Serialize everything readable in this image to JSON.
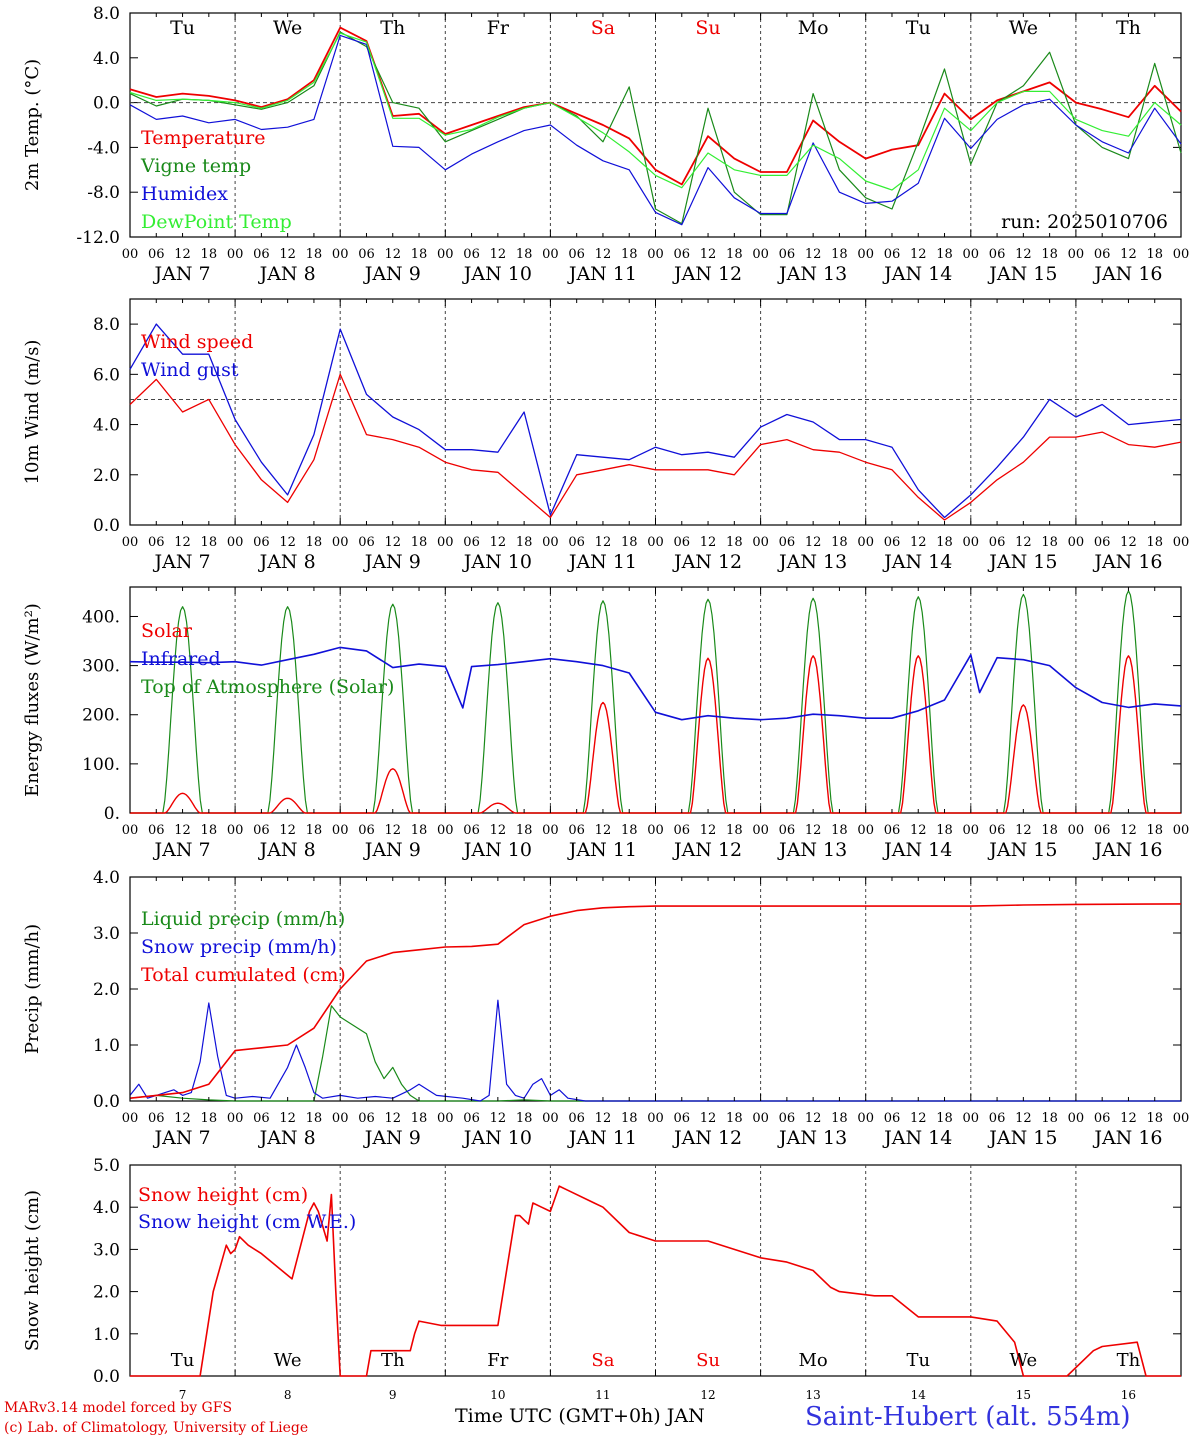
{
  "footer": {
    "model_line": "MARv3.14 model forced by GFS",
    "credit_line": "(c) Lab. of Climatology, University of Liege",
    "time_axis_label": "Time UTC (GMT+0h) JAN",
    "station": "Saint-Hubert (alt. 554m)"
  },
  "colors": {
    "red": "#ee0000",
    "dark_green": "#1a8a1a",
    "blue": "#1010d8",
    "light_green": "#33ee33",
    "grey": "#555555"
  },
  "days": {
    "weekdays": [
      "Tu",
      "We",
      "Th",
      "Fr",
      "Sa",
      "Su",
      "Mo",
      "Tu",
      "We",
      "Th"
    ],
    "weekend_flags": [
      false,
      false,
      false,
      false,
      true,
      true,
      false,
      false,
      false,
      false
    ],
    "date_labels": [
      "JAN  7",
      "JAN  8",
      "JAN  9",
      "JAN 10",
      "JAN 11",
      "JAN 12",
      "JAN 13",
      "JAN 14",
      "JAN 15",
      "JAN 16"
    ],
    "day_numbers": [
      "7",
      "8",
      "9",
      "10",
      "11",
      "12",
      "13",
      "14",
      "15",
      "16"
    ],
    "hour_ticks": [
      "00",
      "06",
      "12",
      "18"
    ],
    "final_tick": "00"
  },
  "chart_data": [
    {
      "type": "line",
      "ylabel": "2m Temp. (°C)",
      "ylim": [
        -12,
        8
      ],
      "y_ticks": [
        "8.0",
        "4.0",
        "0.0",
        "-4.0",
        "-8.0",
        "-12.0"
      ],
      "reference_line": 0,
      "annotation": "run: 2025010706",
      "x_hours": [
        0,
        6,
        12,
        18,
        24,
        30,
        36,
        42,
        48,
        54,
        60,
        66,
        72,
        78,
        84,
        90,
        96,
        102,
        108,
        114,
        120,
        126,
        132,
        138,
        144,
        150,
        156,
        162,
        168,
        174,
        180,
        186,
        192,
        198,
        204,
        210,
        216,
        222,
        228,
        234,
        240
      ],
      "series": [
        {
          "name": "Temperature",
          "color": "red",
          "values": [
            1.2,
            0.5,
            0.8,
            0.6,
            0.2,
            -0.4,
            0.3,
            2.0,
            6.7,
            5.5,
            -1.2,
            -1.0,
            -2.8,
            -2.0,
            -1.2,
            -0.4,
            0.0,
            -1.0,
            -2.0,
            -3.2,
            -6.0,
            -7.3,
            -3.0,
            -5.0,
            -6.2,
            -6.2,
            -1.6,
            -3.5,
            -5.0,
            -4.2,
            -3.8,
            0.8,
            -1.5,
            0.2,
            1.0,
            1.8,
            0.0,
            -0.6,
            -1.3,
            1.5,
            -0.8
          ]
        },
        {
          "name": "Vigne temp",
          "color": "dark_green",
          "values": [
            0.8,
            -0.3,
            0.3,
            0.2,
            -0.2,
            -0.6,
            0.0,
            1.5,
            6.3,
            5.0,
            0.0,
            -0.5,
            -3.5,
            -2.5,
            -1.5,
            -0.5,
            0.0,
            -1.2,
            -3.5,
            1.4,
            -9.5,
            -10.8,
            -0.5,
            -8.0,
            -10.0,
            -10.0,
            0.8,
            -6.0,
            -8.5,
            -9.5,
            -3.5,
            3.0,
            -5.5,
            0.0,
            1.5,
            4.5,
            -2.0,
            -4.0,
            -5.0,
            3.5,
            -4.5
          ]
        },
        {
          "name": "Humidex",
          "color": "blue",
          "values": [
            -0.2,
            -1.5,
            -1.2,
            -1.8,
            -1.5,
            -2.4,
            -2.2,
            -1.5,
            6.0,
            5.2,
            -3.9,
            -4.0,
            -6.0,
            -4.6,
            -3.5,
            -2.5,
            -2.0,
            -3.8,
            -5.2,
            -6.0,
            -9.8,
            -10.9,
            -5.8,
            -8.5,
            -9.9,
            -9.9,
            -3.6,
            -8.0,
            -9.0,
            -8.8,
            -7.2,
            -1.4,
            -4.1,
            -1.5,
            -0.2,
            0.3,
            -2.0,
            -3.5,
            -4.5,
            -0.5,
            -3.7
          ]
        },
        {
          "name": "DewPoint Temp",
          "color": "light_green",
          "values": [
            0.9,
            0.2,
            0.3,
            0.2,
            0.0,
            -0.5,
            0.2,
            1.8,
            6.2,
            5.4,
            -1.4,
            -1.4,
            -2.9,
            -2.4,
            -1.3,
            -0.5,
            0.0,
            -1.3,
            -2.7,
            -4.4,
            -6.5,
            -7.6,
            -4.5,
            -6.0,
            -6.5,
            -6.5,
            -3.8,
            -5.0,
            -7.0,
            -7.8,
            -6.0,
            -0.5,
            -2.5,
            0.0,
            1.0,
            1.0,
            -1.5,
            -2.5,
            -3.0,
            0.0,
            -2.0
          ]
        }
      ]
    },
    {
      "type": "line",
      "ylabel": "10m Wind (m/s)",
      "ylim": [
        0,
        9
      ],
      "y_ticks": [
        "8.0",
        "6.0",
        "4.0",
        "2.0",
        "0.0"
      ],
      "reference_line": 5,
      "x_hours": [
        0,
        6,
        12,
        18,
        24,
        30,
        36,
        42,
        48,
        54,
        60,
        66,
        72,
        78,
        84,
        90,
        96,
        102,
        108,
        114,
        120,
        126,
        132,
        138,
        144,
        150,
        156,
        162,
        168,
        174,
        180,
        186,
        192,
        198,
        204,
        210,
        216,
        222,
        228,
        234,
        240
      ],
      "series": [
        {
          "name": "Wind speed",
          "color": "red",
          "values": [
            4.8,
            5.8,
            4.5,
            5.0,
            3.2,
            1.8,
            0.9,
            2.6,
            6.0,
            3.6,
            3.4,
            3.1,
            2.5,
            2.2,
            2.1,
            1.2,
            0.3,
            2.0,
            2.2,
            2.4,
            2.2,
            2.2,
            2.2,
            2.0,
            3.2,
            3.4,
            3.0,
            2.9,
            2.5,
            2.2,
            1.1,
            0.2,
            0.9,
            1.8,
            2.5,
            3.5,
            3.5,
            3.7,
            3.2,
            3.1,
            3.3
          ]
        },
        {
          "name": "Wind gust",
          "color": "blue",
          "values": [
            6.2,
            8.0,
            6.8,
            6.8,
            4.2,
            2.5,
            1.2,
            3.6,
            7.8,
            5.2,
            4.3,
            3.8,
            3.0,
            3.0,
            2.9,
            4.5,
            0.4,
            2.8,
            2.7,
            2.6,
            3.1,
            2.8,
            2.9,
            2.7,
            3.9,
            4.4,
            4.1,
            3.4,
            3.4,
            3.1,
            1.4,
            0.3,
            1.2,
            2.3,
            3.5,
            5.0,
            4.3,
            4.8,
            4.0,
            4.1,
            4.2
          ]
        }
      ]
    },
    {
      "type": "line",
      "ylabel": "Energy fluxes (W/m²)",
      "ylim": [
        0,
        460
      ],
      "y_ticks": [
        "400.",
        "300.",
        "200.",
        "100.",
        "0."
      ],
      "series": [
        {
          "name": "Solar",
          "color": "red",
          "peak_hour": 12,
          "duration_hours": 8,
          "peaks": [
            40,
            30,
            90,
            20,
            225,
            315,
            320,
            320,
            220,
            320
          ]
        },
        {
          "name": "Infrared",
          "color": "blue",
          "x_hours": [
            0,
            6,
            12,
            18,
            24,
            30,
            36,
            42,
            48,
            54,
            60,
            66,
            72,
            76,
            78,
            84,
            90,
            96,
            102,
            108,
            114,
            120,
            126,
            132,
            138,
            144,
            150,
            156,
            162,
            168,
            174,
            180,
            186,
            192,
            194,
            198,
            204,
            210,
            216,
            222,
            228,
            234,
            240
          ],
          "values": [
            308,
            307,
            307,
            306,
            308,
            301,
            312,
            323,
            337,
            330,
            296,
            303,
            298,
            214,
            298,
            302,
            308,
            314,
            308,
            300,
            285,
            205,
            190,
            198,
            193,
            190,
            193,
            201,
            198,
            193,
            193,
            208,
            230,
            322,
            245,
            316,
            312,
            300,
            255,
            225,
            215,
            222,
            218
          ]
        },
        {
          "name": "Top of Atmosphere (Solar)",
          "color": "dark_green",
          "peak_hour": 12,
          "duration_hours": 9,
          "peaks": [
            420,
            420,
            425,
            428,
            432,
            435,
            437,
            440,
            445,
            452
          ]
        }
      ]
    },
    {
      "type": "line",
      "ylabel": "Precip (mm/h)",
      "ylim": [
        0,
        4
      ],
      "y_ticks": [
        "4.0",
        "3.0",
        "2.0",
        "1.0",
        "0.0"
      ],
      "series": [
        {
          "name": "Liquid precip (mm/h)",
          "color": "dark_green",
          "x_hours": [
            0,
            6,
            12,
            18,
            24,
            30,
            36,
            42,
            44,
            46,
            48,
            50,
            54,
            56,
            58,
            60,
            62,
            64,
            66,
            72,
            78,
            84,
            90,
            96,
            102,
            108,
            240
          ],
          "values": [
            0.05,
            0.1,
            0.05,
            0.02,
            0.0,
            0.0,
            0.0,
            0.0,
            0.8,
            1.7,
            1.5,
            1.4,
            1.2,
            0.7,
            0.4,
            0.6,
            0.3,
            0.1,
            0.0,
            0.0,
            0.0,
            0.0,
            0.02,
            0.0,
            0.0,
            0.0,
            0.0
          ]
        },
        {
          "name": "Snow precip (mm/h)",
          "color": "blue",
          "x_hours": [
            0,
            2,
            4,
            6,
            8,
            10,
            12,
            14,
            16,
            18,
            20,
            22,
            24,
            28,
            32,
            36,
            38,
            40,
            42,
            44,
            48,
            52,
            56,
            60,
            64,
            66,
            70,
            76,
            80,
            82,
            84,
            86,
            88,
            90,
            92,
            94,
            96,
            98,
            100,
            104,
            240
          ],
          "values": [
            0.1,
            0.3,
            0.05,
            0.1,
            0.15,
            0.2,
            0.1,
            0.15,
            0.7,
            1.75,
            0.8,
            0.1,
            0.05,
            0.08,
            0.05,
            0.6,
            1.0,
            0.6,
            0.15,
            0.05,
            0.1,
            0.05,
            0.08,
            0.05,
            0.2,
            0.3,
            0.1,
            0.05,
            0.0,
            0.1,
            1.8,
            0.3,
            0.1,
            0.05,
            0.3,
            0.4,
            0.1,
            0.2,
            0.05,
            0.0,
            0.0
          ]
        },
        {
          "name": "Total cumulated (cm)",
          "color": "red",
          "x_hours": [
            0,
            6,
            12,
            18,
            24,
            30,
            36,
            42,
            48,
            54,
            60,
            66,
            72,
            78,
            84,
            90,
            96,
            102,
            108,
            114,
            120,
            132,
            150,
            168,
            186,
            192,
            204,
            216,
            240
          ],
          "values": [
            0.05,
            0.1,
            0.15,
            0.3,
            0.9,
            0.95,
            1.0,
            1.3,
            2.0,
            2.5,
            2.65,
            2.7,
            2.75,
            2.76,
            2.8,
            3.15,
            3.3,
            3.4,
            3.45,
            3.47,
            3.48,
            3.48,
            3.48,
            3.48,
            3.48,
            3.48,
            3.5,
            3.51,
            3.52
          ]
        }
      ]
    },
    {
      "type": "line",
      "ylabel": "Snow height (cm)",
      "ylim": [
        0,
        5
      ],
      "y_ticks": [
        "5.0",
        "4.0",
        "3.0",
        "2.0",
        "1.0",
        "0.0"
      ],
      "series": [
        {
          "name": "Snow height (cm)",
          "color": "red",
          "x_hours": [
            0,
            16,
            19,
            22,
            23,
            24,
            25,
            27,
            30,
            37,
            41,
            42,
            43,
            45,
            46,
            47,
            48,
            54,
            55,
            58,
            64,
            65,
            66,
            71,
            72,
            73,
            77,
            84,
            86,
            88,
            89,
            90,
            91,
            92,
            94,
            96,
            98,
            100,
            106,
            108,
            114,
            120,
            122,
            132,
            138,
            144,
            150,
            156,
            160,
            162,
            170,
            174,
            180,
            186,
            192,
            198,
            202,
            204,
            206,
            214,
            220,
            222,
            230,
            232,
            240
          ],
          "values": [
            0,
            0,
            2.0,
            3.1,
            2.9,
            3.0,
            3.3,
            3.1,
            2.9,
            2.3,
            3.9,
            4.1,
            3.9,
            3.2,
            4.3,
            2.0,
            0,
            0,
            0.6,
            0.6,
            0.6,
            1.0,
            1.3,
            1.2,
            1.2,
            1.2,
            1.2,
            1.2,
            2.5,
            3.8,
            3.8,
            3.7,
            3.6,
            4.1,
            4.0,
            3.9,
            4.5,
            4.4,
            4.1,
            4.0,
            3.4,
            3.2,
            3.2,
            3.2,
            3.0,
            2.8,
            2.7,
            2.5,
            2.1,
            2.0,
            1.9,
            1.9,
            1.4,
            1.4,
            1.4,
            1.3,
            0.8,
            0,
            0,
            0,
            0.6,
            0.7,
            0.8,
            0,
            0
          ]
        },
        {
          "name": "Snow height (cm W.E.)",
          "color": "blue",
          "x_hours": [],
          "values": []
        }
      ]
    }
  ]
}
